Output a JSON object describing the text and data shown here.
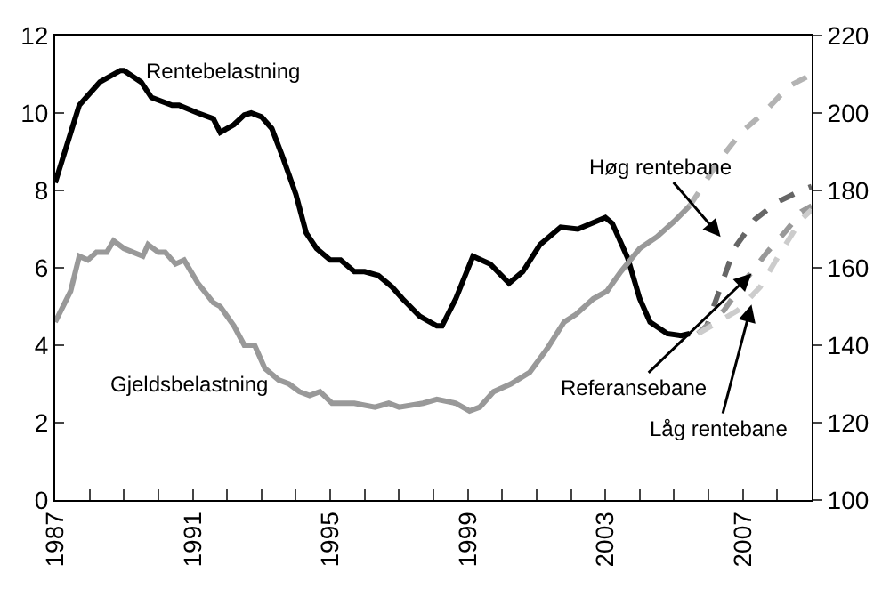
{
  "chart_data": {
    "type": "line",
    "xlim": [
      1987,
      2009
    ],
    "ylim": [
      0,
      12
    ],
    "yticks": [
      0,
      2,
      4,
      6,
      8,
      10,
      12
    ],
    "y2lim": [
      100,
      220
    ],
    "y2ticks": [
      100,
      120,
      140,
      160,
      180,
      200,
      220
    ],
    "xticks": [
      1987,
      {
        "value": 1988,
        "label": null
      },
      {
        "value": 1989,
        "label": null
      },
      {
        "value": 1990,
        "label": null
      },
      1991,
      {
        "value": 1992,
        "label": null
      },
      {
        "value": 1993,
        "label": null
      },
      {
        "value": 1994,
        "label": null
      },
      1995,
      {
        "value": 1996,
        "label": null
      },
      {
        "value": 1997,
        "label": null
      },
      {
        "value": 1998,
        "label": null
      },
      1999,
      {
        "value": 2000,
        "label": null
      },
      {
        "value": 2001,
        "label": null
      },
      {
        "value": 2002,
        "label": null
      },
      2003,
      {
        "value": 2004,
        "label": null
      },
      {
        "value": 2005,
        "label": null
      },
      {
        "value": 2006,
        "label": null
      },
      2007,
      {
        "value": 2008,
        "label": null
      }
    ],
    "legend": false,
    "marker": "none",
    "series": [
      {
        "name": "Rentebelastning",
        "color": "#000000",
        "line_style": "solid",
        "x": [
          1987.0,
          1987.7,
          1988.3,
          1988.9,
          1989.0,
          1989.5,
          1989.8,
          1990.4,
          1990.6,
          1991.15,
          1991.6,
          1991.8,
          1992.2,
          1992.5,
          1992.7,
          1993.0,
          1993.3,
          1993.6,
          1994.0,
          1994.3,
          1994.6,
          1995.0,
          1995.3,
          1995.7,
          1996.0,
          1996.4,
          1996.8,
          1997.1,
          1997.6,
          1998.1,
          1998.25,
          1998.65,
          1999.15,
          1999.65,
          2000.2,
          2000.6,
          2001.1,
          2001.7,
          2002.2,
          2002.6,
          2003.0,
          2003.2,
          2003.65,
          2004.0,
          2004.3,
          2004.8,
          2005.2,
          2005.45
        ],
        "values": [
          8.2,
          10.2,
          10.8,
          11.1,
          11.1,
          10.8,
          10.4,
          10.2,
          10.2,
          10.0,
          9.85,
          9.5,
          9.7,
          9.95,
          10.0,
          9.9,
          9.6,
          8.9,
          7.9,
          6.9,
          6.5,
          6.2,
          6.2,
          5.9,
          5.9,
          5.8,
          5.5,
          5.2,
          4.75,
          4.5,
          4.5,
          5.2,
          6.3,
          6.1,
          5.6,
          5.9,
          6.6,
          7.05,
          7.0,
          7.15,
          7.3,
          7.15,
          6.25,
          5.2,
          4.6,
          4.3,
          4.25,
          4.3
        ]
      },
      {
        "name": "Gjeldsbelastning",
        "color": "#999999",
        "line_style": "solid",
        "axis": "y2",
        "x": [
          1987.0,
          1987.45,
          1987.7,
          1987.95,
          1988.2,
          1988.5,
          1988.7,
          1989.0,
          1989.55,
          1989.7,
          1990.0,
          1990.2,
          1990.5,
          1990.75,
          1991.15,
          1991.6,
          1991.8,
          1992.2,
          1992.5,
          1992.8,
          1993.1,
          1993.5,
          1993.8,
          1994.1,
          1994.4,
          1994.7,
          1995.05,
          1995.7,
          1996.3,
          1996.7,
          1997.0,
          1997.7,
          1998.1,
          1998.65,
          1999.05,
          1999.35,
          1999.75,
          2000.25,
          2000.8,
          2001.3,
          2001.8,
          2002.15,
          2002.65,
          2003.05,
          2003.45,
          2004.0,
          2004.5,
          2005.0,
          2005.45
        ],
        "values": [
          146,
          154,
          163,
          162,
          164,
          164,
          167,
          165,
          163,
          166,
          164,
          164,
          161,
          162,
          156,
          151,
          150,
          145,
          140,
          140,
          134,
          131,
          130,
          128,
          127,
          128,
          125,
          125,
          124,
          125,
          124,
          125,
          126,
          125,
          123,
          124,
          128,
          130,
          133,
          139,
          146,
          148,
          152,
          154,
          159,
          165,
          168,
          172,
          176
        ]
      },
      {
        "color": "#b3b3b3",
        "line_style": "dashed",
        "axis": "y2",
        "x": [
          2005.45,
          2005.75,
          2006.25,
          2006.95,
          2007.6,
          2008.35,
          2009.0
        ],
        "values": [
          176,
          180,
          187,
          195,
          200,
          207,
          210
        ]
      },
      {
        "name": "Høg rentebane",
        "color": "#666666",
        "line_style": "dashed",
        "x": [
          2005.7,
          2005.95,
          2006.35,
          2006.75,
          2007.35,
          2008.0,
          2008.7,
          2009.0
        ],
        "values": [
          4.3,
          4.5,
          5.5,
          6.5,
          7.25,
          7.7,
          8.0,
          8.1
        ]
      },
      {
        "name": "Referansebane",
        "color": "#999999",
        "line_style": "dashed",
        "x": [
          2005.7,
          2006.45,
          2007.0,
          2007.7,
          2008.25,
          2008.7,
          2009.0
        ],
        "values": [
          4.3,
          4.9,
          5.6,
          6.4,
          6.95,
          7.45,
          7.6
        ]
      },
      {
        "name": "Låg rentebane",
        "color": "#cccccc",
        "line_style": "dashed",
        "x": [
          2005.7,
          2006.85,
          2007.5,
          2008.1,
          2008.7,
          2009.0
        ],
        "values": [
          4.3,
          4.9,
          5.5,
          6.4,
          7.25,
          7.5
        ]
      }
    ]
  }
}
